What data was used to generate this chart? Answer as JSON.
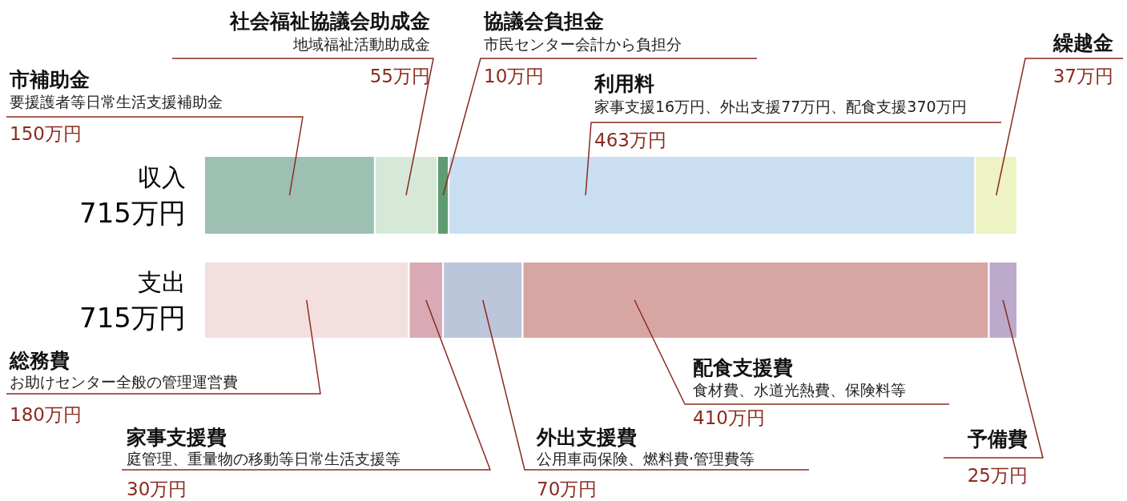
{
  "chart_data": {
    "type": "bar",
    "orientation": "horizontal",
    "stacked": true,
    "categories": [
      "収入",
      "支出"
    ],
    "totals": [
      "715万円",
      "715万円"
    ],
    "series": [
      {
        "name": "市補助金",
        "color": "#9dc0b3",
        "values": [
          150,
          null
        ],
        "value_labels": [
          "150万円",
          null
        ]
      },
      {
        "name": "社会福祉協議会助成金",
        "color": "#d6e9d9",
        "values": [
          55,
          null
        ],
        "value_labels": [
          "55万円",
          null
        ]
      },
      {
        "name": "協議会負担金",
        "color": "#5f9c72",
        "values": [
          10,
          null
        ],
        "value_labels": [
          "10万円",
          null
        ]
      },
      {
        "name": "利用料",
        "color": "#c9def0",
        "values": [
          463,
          null
        ],
        "value_labels": [
          "463万円",
          null
        ]
      },
      {
        "name": "繰越金",
        "color": "#eef3c4",
        "values": [
          37,
          null
        ],
        "value_labels": [
          "37万円",
          null
        ]
      },
      {
        "name": "総務費",
        "color": "#f4dfdf",
        "values": [
          null,
          180
        ],
        "value_labels": [
          null,
          "180万円"
        ]
      },
      {
        "name": "家事支援費",
        "color": "#d9aab6",
        "values": [
          null,
          30
        ],
        "value_labels": [
          null,
          "30万円"
        ]
      },
      {
        "name": "外出支援費",
        "color": "#bcc6da",
        "values": [
          null,
          70
        ],
        "value_labels": [
          null,
          "70万円"
        ]
      },
      {
        "name": "配食支援費",
        "color": "#d7a6a3",
        "values": [
          null,
          410
        ],
        "value_labels": [
          null,
          "410万円"
        ]
      },
      {
        "name": "予備費",
        "color": "#bcaacd",
        "values": [
          null,
          25
        ],
        "value_labels": [
          null,
          "25万円"
        ]
      }
    ],
    "annotations": [
      "要援護者等日常生活支援補助金",
      "地域福祉活動助成金",
      "市民センター会計から負担分",
      "家事支援16万円、外出支援77万円、配食支援370万円",
      "お助けセンター全般の管理運営費",
      "庭管理、重量物の移動等日常生活支援等",
      "公用車両保険、燃料費·管理費等",
      "食材費、水道光熱費、保険料等"
    ]
  }
}
